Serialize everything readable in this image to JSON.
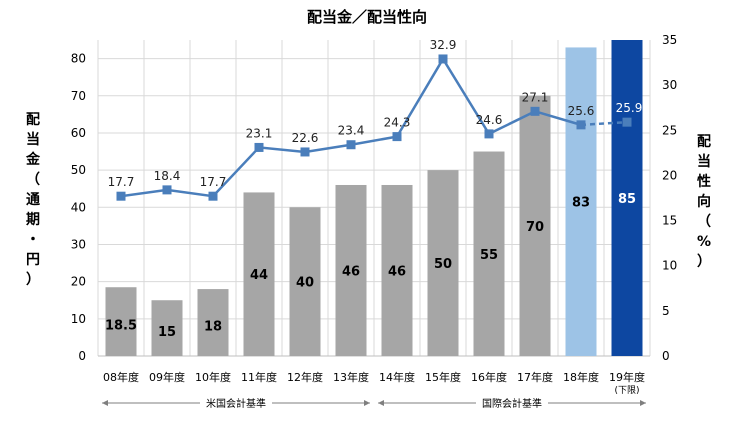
{
  "chart_data": {
    "type": "bar",
    "title": "配当金／配当性向",
    "categories": [
      "08年度",
      "09年度",
      "10年度",
      "11年度",
      "12年度",
      "13年度",
      "14年度",
      "15年度",
      "16年度",
      "17年度",
      "18年度",
      "19年度"
    ],
    "category_note": {
      "index": 11,
      "text": "(下限)"
    },
    "series": [
      {
        "name": "配当金",
        "type": "bar",
        "axis": "left",
        "values": [
          18.5,
          15,
          18,
          44,
          40,
          46,
          46,
          50,
          55,
          70,
          83,
          85
        ],
        "colors": [
          "#a6a6a6",
          "#a6a6a6",
          "#a6a6a6",
          "#a6a6a6",
          "#a6a6a6",
          "#a6a6a6",
          "#a6a6a6",
          "#a6a6a6",
          "#a6a6a6",
          "#a6a6a6",
          "#9dc3e6",
          "#0d47a1"
        ],
        "label_colors": [
          "#000000",
          "#000000",
          "#000000",
          "#000000",
          "#000000",
          "#000000",
          "#000000",
          "#000000",
          "#000000",
          "#000000",
          "#000000",
          "#ffffff"
        ]
      },
      {
        "name": "配当性向",
        "type": "line",
        "axis": "right",
        "values": [
          17.7,
          18.4,
          17.7,
          23.1,
          22.6,
          23.4,
          24.3,
          32.9,
          24.6,
          27.1,
          25.6,
          25.9
        ],
        "labels": [
          "17.7",
          "18.4",
          "17.7",
          "23.1",
          "22.6",
          "23.4",
          "24.3",
          "32.9",
          "24.6",
          "27.1",
          "25.6",
          "25.9"
        ],
        "label_colors": [
          "#222222",
          "#222222",
          "#222222",
          "#222222",
          "#222222",
          "#222222",
          "#222222",
          "#222222",
          "#222222",
          "#222222",
          "#222222",
          "#ffffff"
        ],
        "dashed_from_index": 10,
        "color": "#4a7ebb"
      }
    ],
    "y_left": {
      "label_chars": [
        "配",
        "当",
        "金",
        "（",
        "通",
        "期",
        "・",
        "円",
        "）"
      ],
      "ylim": [
        0,
        85
      ],
      "ticks": [
        0,
        10,
        20,
        30,
        40,
        50,
        60,
        70,
        80
      ]
    },
    "y_right": {
      "label_chars": [
        "配",
        "当",
        "性",
        "向",
        "（",
        "%",
        "）"
      ],
      "ylim": [
        0,
        35
      ],
      "ticks": [
        0,
        5,
        10,
        15,
        20,
        25,
        30,
        35
      ]
    },
    "grid": true,
    "accounting_standards": [
      {
        "text": "米国会計基準",
        "from": 0,
        "to": 5
      },
      {
        "text": "国際会計基準",
        "from": 6,
        "to": 11
      }
    ]
  }
}
